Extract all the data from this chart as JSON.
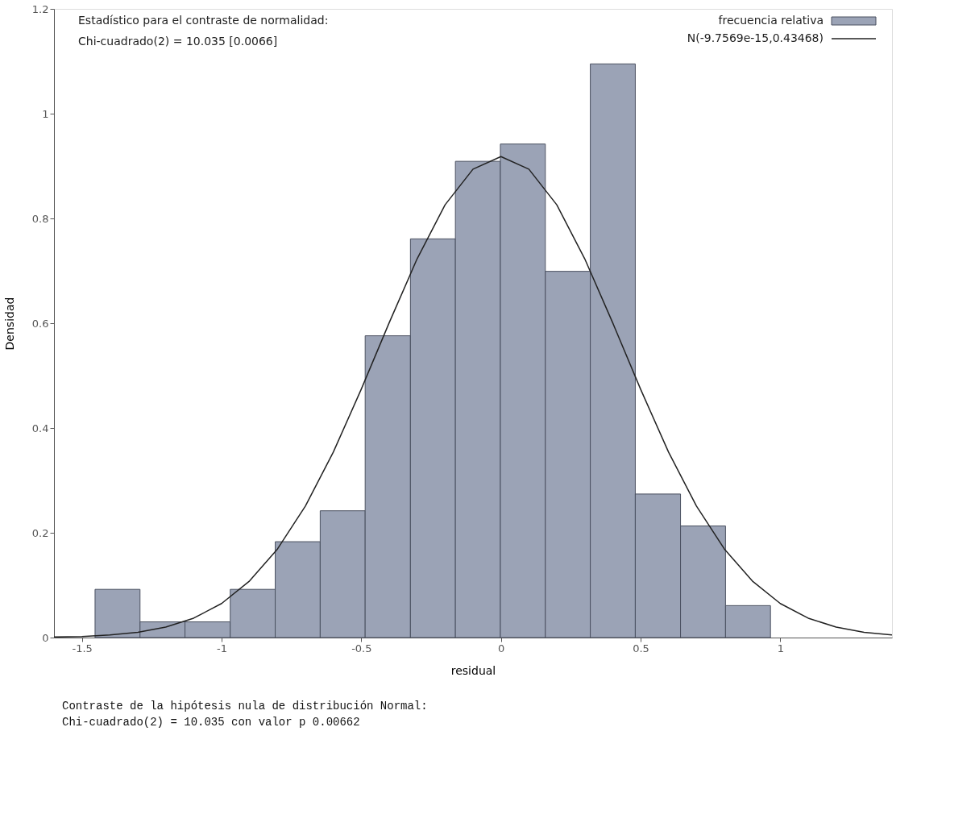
{
  "chart_data": {
    "type": "histogram",
    "xlabel": "residual",
    "ylabel": "Densidad",
    "bins": [
      -1.453,
      -1.292,
      -1.131,
      -0.969,
      -0.808,
      -0.647,
      -0.486,
      -0.324,
      -0.163,
      -0.002,
      0.159,
      0.32,
      0.481,
      0.643,
      0.804,
      0.965
    ],
    "series": [
      {
        "name": "frecuencia relativa",
        "color": "#9ba3b6",
        "values": [
          0.092,
          0.03,
          0.03,
          0.092,
          0.183,
          0.242,
          0.576,
          0.761,
          0.909,
          0.942,
          0.699,
          1.095,
          0.274,
          0.213,
          0.061
        ]
      },
      {
        "name": "N(-9.7569e-15,0.43468)",
        "type": "line",
        "color": "#222222",
        "x": [
          -1.6,
          -1.5,
          -1.4,
          -1.3,
          -1.2,
          -1.1,
          -1.0,
          -0.9,
          -0.8,
          -0.7,
          -0.6,
          -0.5,
          -0.4,
          -0.3,
          -0.2,
          -0.1,
          0.0,
          0.1,
          0.2,
          0.3,
          0.4,
          0.5,
          0.6,
          0.7,
          0.8,
          0.9,
          1.0,
          1.1,
          1.2,
          1.3,
          1.4
        ],
        "values": [
          0.001,
          0.002,
          0.005,
          0.01,
          0.02,
          0.037,
          0.065,
          0.108,
          0.169,
          0.251,
          0.354,
          0.474,
          0.601,
          0.723,
          0.826,
          0.894,
          0.918,
          0.894,
          0.826,
          0.723,
          0.601,
          0.474,
          0.354,
          0.251,
          0.169,
          0.108,
          0.065,
          0.037,
          0.02,
          0.01,
          0.005
        ]
      }
    ],
    "xlim": [
      -1.6,
      1.4
    ],
    "ylim": [
      0,
      1.2
    ],
    "xticks": [
      -1.5,
      -1,
      -0.5,
      0,
      0.5,
      1
    ],
    "yticks": [
      0,
      0.2,
      0.4,
      0.6,
      0.8,
      1,
      1.2
    ],
    "grid": false,
    "legend": "top right",
    "annotations": [
      "Estadístico para el contraste de normalidad:",
      "Chi-cuadrado(2) = 10.035 [0.0066]",
      "Contraste de la hipótesis nula de distribución Normal:",
      "Chi-cuadrado(2) = 10.035 con valor p 0.00662"
    ]
  }
}
